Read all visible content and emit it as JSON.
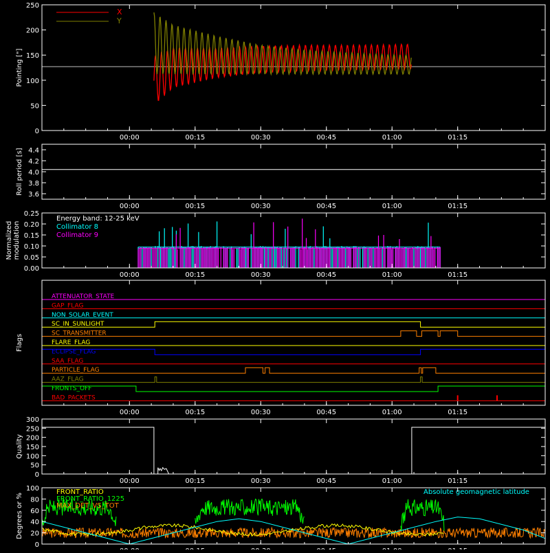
{
  "colors": {
    "axis": "#ffffff",
    "background": "#000000",
    "x": "#ff0000",
    "y": "#808000",
    "cyan": "#00ffff",
    "magenta": "#ff00ff",
    "green": "#00ff00",
    "orange": "#ff8000",
    "yellow": "#ffff00",
    "blue": "#0000ff",
    "red": "#ff0000",
    "olive": "#808000"
  },
  "time_ticks": [
    "00:00",
    "00:15",
    "00:30",
    "00:45",
    "01:00",
    "01:15"
  ],
  "chart_data": [
    {
      "id": "pointing",
      "type": "line",
      "ylabel": "Pointing [\"]",
      "ylim": [
        0,
        250
      ],
      "yticks": [
        "0",
        "50",
        "100",
        "150",
        "200",
        "250"
      ],
      "x_range_min": [
        -20,
        95
      ],
      "series": [
        {
          "name": "X",
          "color": "#ff0000",
          "start_min": 5.6,
          "end_min": 64.5,
          "upper": [
            [
              5.6,
              148
            ],
            [
              10,
              165
            ],
            [
              20,
              164
            ],
            [
              30,
              168
            ],
            [
              40,
              170
            ],
            [
              50,
              170
            ],
            [
              60,
              171
            ],
            [
              64.5,
              172
            ]
          ],
          "lower": [
            [
              5.6,
              50
            ],
            [
              10,
              85
            ],
            [
              20,
              105
            ],
            [
              30,
              115
            ],
            [
              40,
              118
            ],
            [
              50,
              120
            ],
            [
              60,
              121
            ],
            [
              64.5,
              122
            ]
          ]
        },
        {
          "name": "Y",
          "color": "#808000",
          "start_min": 5.6,
          "end_min": 64.5,
          "upper": [
            [
              5.6,
              235
            ],
            [
              10,
              210
            ],
            [
              20,
              188
            ],
            [
              30,
              170
            ],
            [
              40,
              160
            ],
            [
              50,
              155
            ],
            [
              60,
              151
            ],
            [
              64.5,
              150
            ]
          ],
          "lower": [
            [
              5.6,
              112
            ],
            [
              10,
              112
            ],
            [
              20,
              112
            ],
            [
              30,
              112
            ],
            [
              40,
              112
            ],
            [
              50,
              112
            ],
            [
              60,
              112
            ],
            [
              64.5,
              112
            ]
          ]
        }
      ],
      "baseline": 127
    },
    {
      "id": "roll-period",
      "type": "line",
      "ylabel": "Roll period [s]",
      "ylim": [
        3.5,
        4.5
      ],
      "yticks": [
        "3.6",
        "3.8",
        "4.0",
        "4.2",
        "4.4"
      ],
      "x_range_min": [
        -20,
        95
      ],
      "series": [
        {
          "values": [
            [
              -20,
              4.04
            ],
            [
              95,
              4.04
            ]
          ]
        }
      ]
    },
    {
      "id": "modulation",
      "type": "line",
      "ylabel": "Normalized modulation",
      "ylim": [
        0,
        0.25
      ],
      "yticks": [
        "0.00",
        "0.05",
        "0.10",
        "0.15",
        "0.20",
        "0.25"
      ],
      "x_range_min": [
        -20,
        95
      ],
      "annotation": "Energy band: 12-25 keV",
      "series": [
        {
          "name": "Collimator 8",
          "color": "#00ffff",
          "start_min": 2,
          "end_min": 71,
          "level": 0.095
        },
        {
          "name": "Collimator 9",
          "color": "#ff00ff",
          "start_min": 2,
          "end_min": 71,
          "level": 0.09
        }
      ]
    },
    {
      "id": "flags",
      "type": "line",
      "ylabel": "Flags",
      "x_range_min": [
        -20,
        95
      ],
      "flags": [
        {
          "name": "ATTENUATOR_STATE",
          "color": "#ff00ff",
          "segments": []
        },
        {
          "name": "GAP_FLAG",
          "color": "#ff0000",
          "segments": []
        },
        {
          "name": "NON_SOLAR_EVENT",
          "color": "#00ffff",
          "segments": []
        },
        {
          "name": "SC_IN_SUNLIGHT",
          "color": "#ffff00",
          "segments": [
            [
              5.8,
              66.5
            ]
          ]
        },
        {
          "name": "SC_TRANSMITTER",
          "color": "#ff8000",
          "segments": [
            [
              62,
              65.6
            ],
            [
              66.8,
              70.5
            ],
            [
              71,
              75
            ]
          ]
        },
        {
          "name": "FLARE_FLAG",
          "color": "#ffff00",
          "segments": []
        },
        {
          "name": "ECLIPSE_FLAG",
          "color": "#0000ff",
          "segments": [
            [
              -20,
              5.8
            ],
            [
              66.5,
              95
            ]
          ]
        },
        {
          "name": "SAA_FLAG",
          "color": "#ff0000",
          "segments": []
        },
        {
          "name": "PARTICLE_FLAG",
          "color": "#ff8000",
          "segments": [
            [
              26.5,
              30.5
            ],
            [
              31,
              32
            ],
            [
              66.2,
              66.7
            ],
            [
              67,
              70
            ]
          ]
        },
        {
          "name": "AAZ_FLAG",
          "color": "#808000",
          "segments": [
            [
              5.8,
              6.2
            ],
            [
              66.5,
              66.9
            ]
          ]
        },
        {
          "name": "FRONTS_OFF",
          "color": "#00ff00",
          "segments": [
            [
              -20,
              1.5
            ],
            [
              70.5,
              95
            ]
          ]
        },
        {
          "name": "BAD_PACKETS",
          "color": "#ff0000",
          "spikes": [
            75,
            84
          ]
        }
      ]
    },
    {
      "id": "quality",
      "type": "line",
      "ylabel": "Quality",
      "ylim": [
        0,
        300
      ],
      "yticks": [
        "0",
        "50",
        "100",
        "150",
        "200",
        "250",
        "300"
      ],
      "x_range_min": [
        -20,
        95
      ],
      "series": [
        {
          "values": [
            [
              -20,
              255
            ],
            [
              5.6,
              255
            ],
            [
              5.6,
              0
            ],
            [
              6.5,
              0
            ],
            [
              6.5,
              35
            ],
            [
              6.8,
              20
            ],
            [
              7,
              30
            ],
            [
              7.3,
              18
            ],
            [
              7.6,
              35
            ],
            [
              8,
              25
            ],
            [
              8.4,
              30
            ],
            [
              8.8,
              10
            ],
            [
              9,
              0
            ],
            [
              64.5,
              0
            ],
            [
              64.5,
              255
            ],
            [
              95,
              255
            ]
          ]
        }
      ]
    },
    {
      "id": "ratios",
      "type": "line",
      "ylabel": "Degrees or %",
      "ylim": [
        0,
        100
      ],
      "yticks": [
        "0",
        "20",
        "40",
        "60",
        "80",
        "100"
      ],
      "x_range_min": [
        -20,
        95
      ],
      "series": [
        {
          "name": "FRONT_RATIO",
          "color": "#ffff00",
          "level": 25
        },
        {
          "name": "FRONT_RATIO_1225",
          "color": "#00ff00",
          "level": 65,
          "segments": [
            [
              -20,
              -3
            ],
            [
              15,
              40
            ],
            [
              62,
              72
            ]
          ]
        },
        {
          "name": "MAX_DET_VS_TOT",
          "color": "#ff8000",
          "level": 20
        },
        {
          "name": "Absolute geomagnetic latitude",
          "color": "#00ffff",
          "values": [
            [
              -20,
              40
            ],
            [
              -10,
              20
            ],
            [
              0,
              0
            ],
            [
              10,
              20
            ],
            [
              20,
              40
            ],
            [
              25,
              45
            ],
            [
              30,
              40
            ],
            [
              40,
              20
            ],
            [
              50,
              0
            ],
            [
              60,
              20
            ],
            [
              70,
              40
            ],
            [
              75,
              48
            ],
            [
              80,
              45
            ],
            [
              90,
              25
            ],
            [
              95,
              10
            ]
          ]
        }
      ]
    }
  ]
}
